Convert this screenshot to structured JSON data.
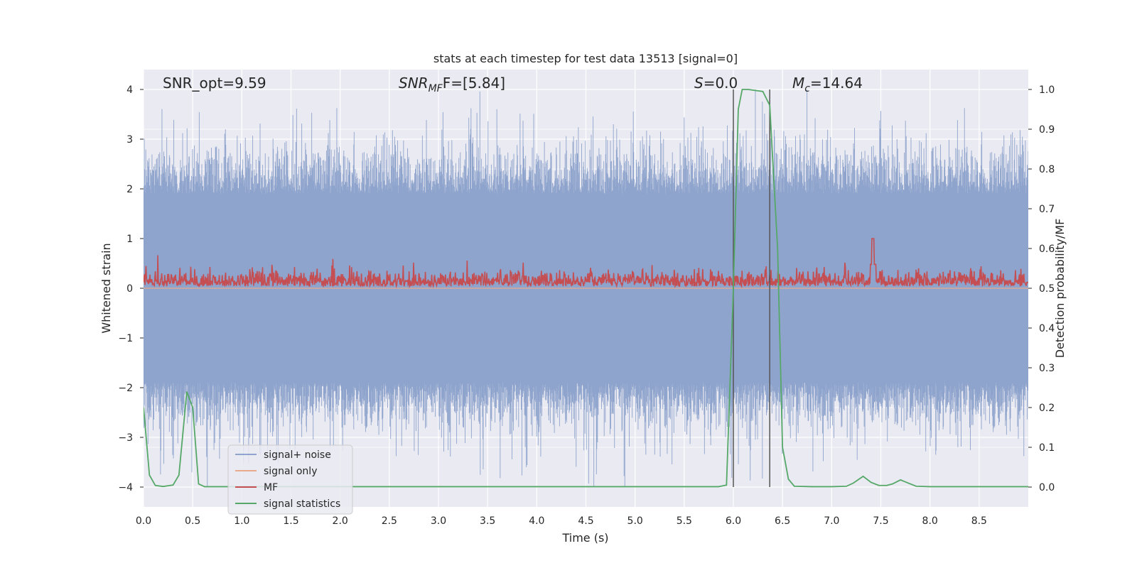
{
  "chart_data": {
    "type": "line",
    "title": "stats at each timestep for test data 13513 [signal=0]",
    "xlabel": "Time (s)",
    "ylabel_left": "Whitened strain",
    "ylabel_right": "Detection probability/MF",
    "xlim": [
      0,
      9
    ],
    "ylim_left": [
      -4.4,
      4.4
    ],
    "ylim_right": [
      -0.05,
      1.05
    ],
    "xticks": [
      "0.0",
      "0.5",
      "1.0",
      "1.5",
      "2.0",
      "2.5",
      "3.0",
      "3.5",
      "4.0",
      "4.5",
      "5.0",
      "5.5",
      "6.0",
      "6.5",
      "7.0",
      "7.5",
      "8.0",
      "8.5"
    ],
    "xtick_values": [
      0,
      0.5,
      1,
      1.5,
      2,
      2.5,
      3,
      3.5,
      4,
      4.5,
      5,
      5.5,
      6,
      6.5,
      7,
      7.5,
      8,
      8.5
    ],
    "yticks_left": [
      "−4",
      "−3",
      "−2",
      "−1",
      "0",
      "1",
      "2",
      "3",
      "4"
    ],
    "ytick_values_left": [
      -4,
      -3,
      -2,
      -1,
      0,
      1,
      2,
      3,
      4
    ],
    "yticks_right": [
      "0.0",
      "0.1",
      "0.2",
      "0.3",
      "0.4",
      "0.5",
      "0.6",
      "0.7",
      "0.8",
      "0.9",
      "1.0"
    ],
    "ytick_values_right": [
      0,
      0.1,
      0.2,
      0.3,
      0.4,
      0.5,
      0.6,
      0.7,
      0.8,
      0.9,
      1.0
    ],
    "annotations": {
      "snr_opt": "SNR_opt=9.59",
      "snr_mf_prefix": "SNR",
      "snr_mf_sub": "MF",
      "snr_mf_suffix": "F=[5.84]",
      "s_prefix": "S",
      "s_value": "=0.0",
      "mc_prefix": "M",
      "mc_sub": "c",
      "mc_value": "=14.64"
    },
    "vertical_markers": [
      6.0,
      6.37
    ],
    "legend": {
      "placement": "lower-left",
      "entries": [
        "signal+ noise",
        "signal only",
        "MF",
        "signal statistics"
      ]
    },
    "series": [
      {
        "name": "signal+ noise",
        "axis": "left",
        "color": "#8fa4cc",
        "description": "dense noise band, typical amplitude ~±2.4, peaks near ±4"
      },
      {
        "name": "signal only",
        "axis": "left",
        "color": "#e8a98c",
        "values_constant": 0
      },
      {
        "name": "MF",
        "axis": "right",
        "color": "#c44e52",
        "baseline": 0.5,
        "typical_range": [
          0.5,
          0.58
        ],
        "spike_x": 7.42,
        "spike_value": 0.625
      },
      {
        "name": "signal statistics",
        "axis": "right",
        "color": "#55a868",
        "x": [
          0,
          0.06,
          0.12,
          0.2,
          0.3,
          0.36,
          0.44,
          0.5,
          0.56,
          0.62,
          0.8,
          1.5,
          3,
          4.5,
          5.5,
          5.85,
          5.93,
          6.0,
          6.05,
          6.09,
          6.15,
          6.3,
          6.37,
          6.45,
          6.5,
          6.56,
          6.62,
          6.8,
          7,
          7.15,
          7.22,
          7.32,
          7.4,
          7.48,
          7.56,
          7.62,
          7.7,
          7.78,
          7.86,
          8,
          8.5,
          9
        ],
        "y": [
          0.2,
          0.03,
          0.004,
          0.0015,
          0.005,
          0.03,
          0.24,
          0.2,
          0.008,
          0.001,
          0.001,
          0.001,
          0.001,
          0.001,
          0.001,
          0.001,
          0.005,
          0.5,
          0.95,
          1.0,
          1.0,
          0.995,
          0.96,
          0.6,
          0.1,
          0.02,
          0.002,
          0.001,
          0.001,
          0.002,
          0.01,
          0.027,
          0.012,
          0.004,
          0.004,
          0.008,
          0.018,
          0.01,
          0.002,
          0.001,
          0.001,
          0.001
        ]
      }
    ]
  }
}
